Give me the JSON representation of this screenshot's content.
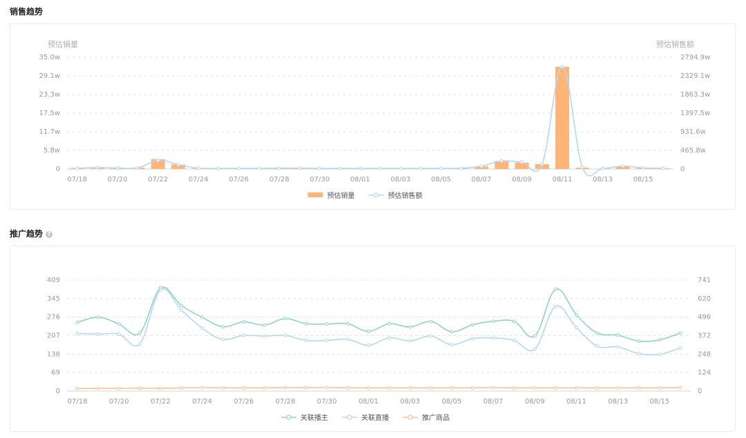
{
  "sales_section": {
    "title": "销售趋势"
  },
  "promo_section": {
    "title": "推广趋势",
    "help_icon": "question-circle-icon",
    "help_glyph": "?"
  },
  "chart_data": [
    {
      "type": "bar+line",
      "title": "",
      "ylabel_left": "预估销量",
      "ylabel_right": "预估销售额",
      "x_labels": [
        "07/18",
        "07/20",
        "07/22",
        "07/24",
        "07/26",
        "07/28",
        "07/30",
        "08/01",
        "08/03",
        "08/05",
        "08/07",
        "08/09",
        "08/11",
        "08/13",
        "08/15"
      ],
      "y_ticks_left": [
        "0",
        "5.8w",
        "11.7w",
        "17.5w",
        "23.3w",
        "29.1w",
        "35.0w"
      ],
      "y_ticks_right": [
        "0",
        "465.8w",
        "931.6w",
        "1397.5w",
        "1863.3w",
        "2329.1w",
        "2794.9w"
      ],
      "ylim_left": [
        0,
        35.0
      ],
      "ylim_right": [
        0,
        2794.9
      ],
      "legend_position": "bottom-center",
      "grid": true,
      "colors": {
        "bar": "#ffb578",
        "line": "#b5d6f2"
      },
      "series": [
        {
          "name": "预估销量",
          "kind": "bar",
          "axis": "left",
          "values": [
            0.3,
            0.5,
            0.3,
            0.4,
            3.1,
            1.4,
            0.2,
            0.2,
            0.2,
            0.2,
            0.2,
            0.2,
            0.2,
            0.2,
            0.2,
            0.2,
            0.2,
            0.2,
            0.2,
            0.2,
            0.8,
            2.5,
            2.0,
            1.5,
            32.0,
            0.4,
            0.1,
            0.8,
            0.4,
            0.2
          ]
        },
        {
          "name": "预估销售额",
          "kind": "line",
          "axis": "right",
          "values": [
            20,
            35,
            25,
            25,
            220,
            110,
            20,
            15,
            15,
            15,
            20,
            20,
            15,
            15,
            15,
            15,
            15,
            15,
            15,
            20,
            70,
            200,
            170,
            120,
            2560,
            40,
            10,
            70,
            30,
            15
          ]
        }
      ]
    },
    {
      "type": "line",
      "title": "",
      "x_labels": [
        "07/18",
        "07/20",
        "07/22",
        "07/24",
        "07/26",
        "07/28",
        "07/30",
        "08/01",
        "08/03",
        "08/05",
        "08/07",
        "08/09",
        "08/11",
        "08/13",
        "08/15"
      ],
      "y_ticks_left": [
        "0",
        "69",
        "138",
        "207",
        "276",
        "345",
        "409"
      ],
      "y_ticks_right": [
        "0",
        "124",
        "248",
        "372",
        "496",
        "620",
        "741"
      ],
      "ylim_left": [
        0,
        409
      ],
      "ylim_right": [
        0,
        741
      ],
      "legend_position": "bottom-center",
      "grid": true,
      "colors": {
        "anchors": "#8fd3c1",
        "live": "#b5d6f2",
        "products": "#ffc08a"
      },
      "series": [
        {
          "name": "关联播主",
          "axis": "left",
          "values": [
            253,
            272,
            247,
            214,
            380,
            315,
            272,
            237,
            255,
            243,
            267,
            248,
            247,
            248,
            220,
            248,
            236,
            256,
            219,
            244,
            257,
            257,
            203,
            375,
            281,
            214,
            206,
            184,
            189,
            214
          ]
        },
        {
          "name": "关联直播",
          "axis": "right",
          "values": [
            385,
            380,
            380,
            316,
            675,
            540,
            420,
            345,
            372,
            367,
            372,
            338,
            338,
            345,
            306,
            355,
            335,
            367,
            310,
            350,
            355,
            338,
            280,
            565,
            425,
            300,
            295,
            250,
            245,
            288
          ]
        },
        {
          "name": "推广商品",
          "axis": "left",
          "values": [
            9,
            10,
            10,
            11,
            10,
            12,
            13,
            12,
            12,
            12,
            13,
            13,
            13,
            12,
            12,
            12,
            12,
            12,
            12,
            12,
            13,
            12,
            12,
            12,
            12,
            12,
            12,
            12,
            12,
            13
          ]
        }
      ]
    }
  ]
}
